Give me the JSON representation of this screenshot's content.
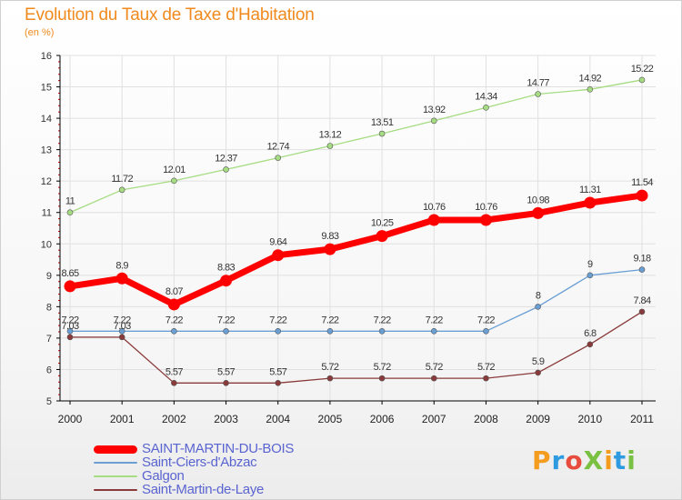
{
  "title": "Evolution du Taux de Taxe d'Habitation",
  "unit_label": "(en %)",
  "brand": "ProXiti",
  "colors": {
    "title": "#f08a1e",
    "legend_text": "#5a64d0",
    "grid": "#e0e0e0",
    "axis": "#000000"
  },
  "chart_data": {
    "type": "line",
    "title": "Evolution du Taux de Taxe d'Habitation",
    "ylabel": "(en %)",
    "xlabel": "",
    "categories": [
      "2000",
      "2001",
      "2002",
      "2003",
      "2004",
      "2005",
      "2006",
      "2007",
      "2008",
      "2009",
      "2010",
      "2011"
    ],
    "ylim": [
      5,
      16
    ],
    "yticks": [
      "5",
      "6",
      "7",
      "8",
      "9",
      "10",
      "11",
      "12",
      "13",
      "14",
      "15",
      "16"
    ],
    "grid": true,
    "legend": "bottom-left",
    "series": [
      {
        "name": "SAINT-MARTIN-DU-BOIS",
        "color": "#ff0000",
        "values": [
          8.65,
          8.9,
          8.07,
          8.83,
          9.64,
          9.83,
          10.25,
          10.76,
          10.76,
          10.98,
          11.31,
          11.54
        ],
        "labels": [
          "8.65",
          "8.9",
          "8.07",
          "8.83",
          "9.64",
          "9.83",
          "10.25",
          "10.76",
          "10.76",
          "10.98",
          "11.31",
          "11.54"
        ]
      },
      {
        "name": "Saint-Ciers-d'Abzac",
        "color": "#6a9fd4",
        "values": [
          7.22,
          7.22,
          7.22,
          7.22,
          7.22,
          7.22,
          7.22,
          7.22,
          7.22,
          8,
          9,
          9.18
        ],
        "labels": [
          "7.22",
          "7.22",
          "7.22",
          "7.22",
          "7.22",
          "7.22",
          "7.22",
          "7.22",
          "7.22",
          "8",
          "9",
          "9.18"
        ]
      },
      {
        "name": "Galgon",
        "color": "#a6dc82",
        "values": [
          11,
          11.72,
          12.01,
          12.37,
          12.74,
          13.12,
          13.51,
          13.92,
          14.34,
          14.77,
          14.92,
          15.22
        ],
        "labels": [
          "11",
          "11.72",
          "12.01",
          "12.37",
          "12.74",
          "13.12",
          "13.51",
          "13.92",
          "14.34",
          "14.77",
          "14.92",
          "15.22"
        ]
      },
      {
        "name": "Saint-Martin-de-Laye",
        "color": "#8a3a3a",
        "values": [
          7.03,
          7.03,
          5.57,
          5.57,
          5.57,
          5.72,
          5.72,
          5.72,
          5.72,
          5.9,
          6.8,
          7.84
        ],
        "labels": [
          "7.03",
          "7.03",
          "5.57",
          "5.57",
          "5.57",
          "5.72",
          "5.72",
          "5.72",
          "5.72",
          "5.9",
          "6.8",
          "7.84"
        ]
      }
    ]
  },
  "legend": [
    {
      "label": "SAINT-MARTIN-DU-BOIS",
      "color": "#ff0000",
      "thick": true
    },
    {
      "label": "Saint-Ciers-d'Abzac",
      "color": "#6a9fd4",
      "thick": false
    },
    {
      "label": "Galgon",
      "color": "#a6dc82",
      "thick": false
    },
    {
      "label": "Saint-Martin-de-Laye",
      "color": "#8a3a3a",
      "thick": false
    }
  ]
}
